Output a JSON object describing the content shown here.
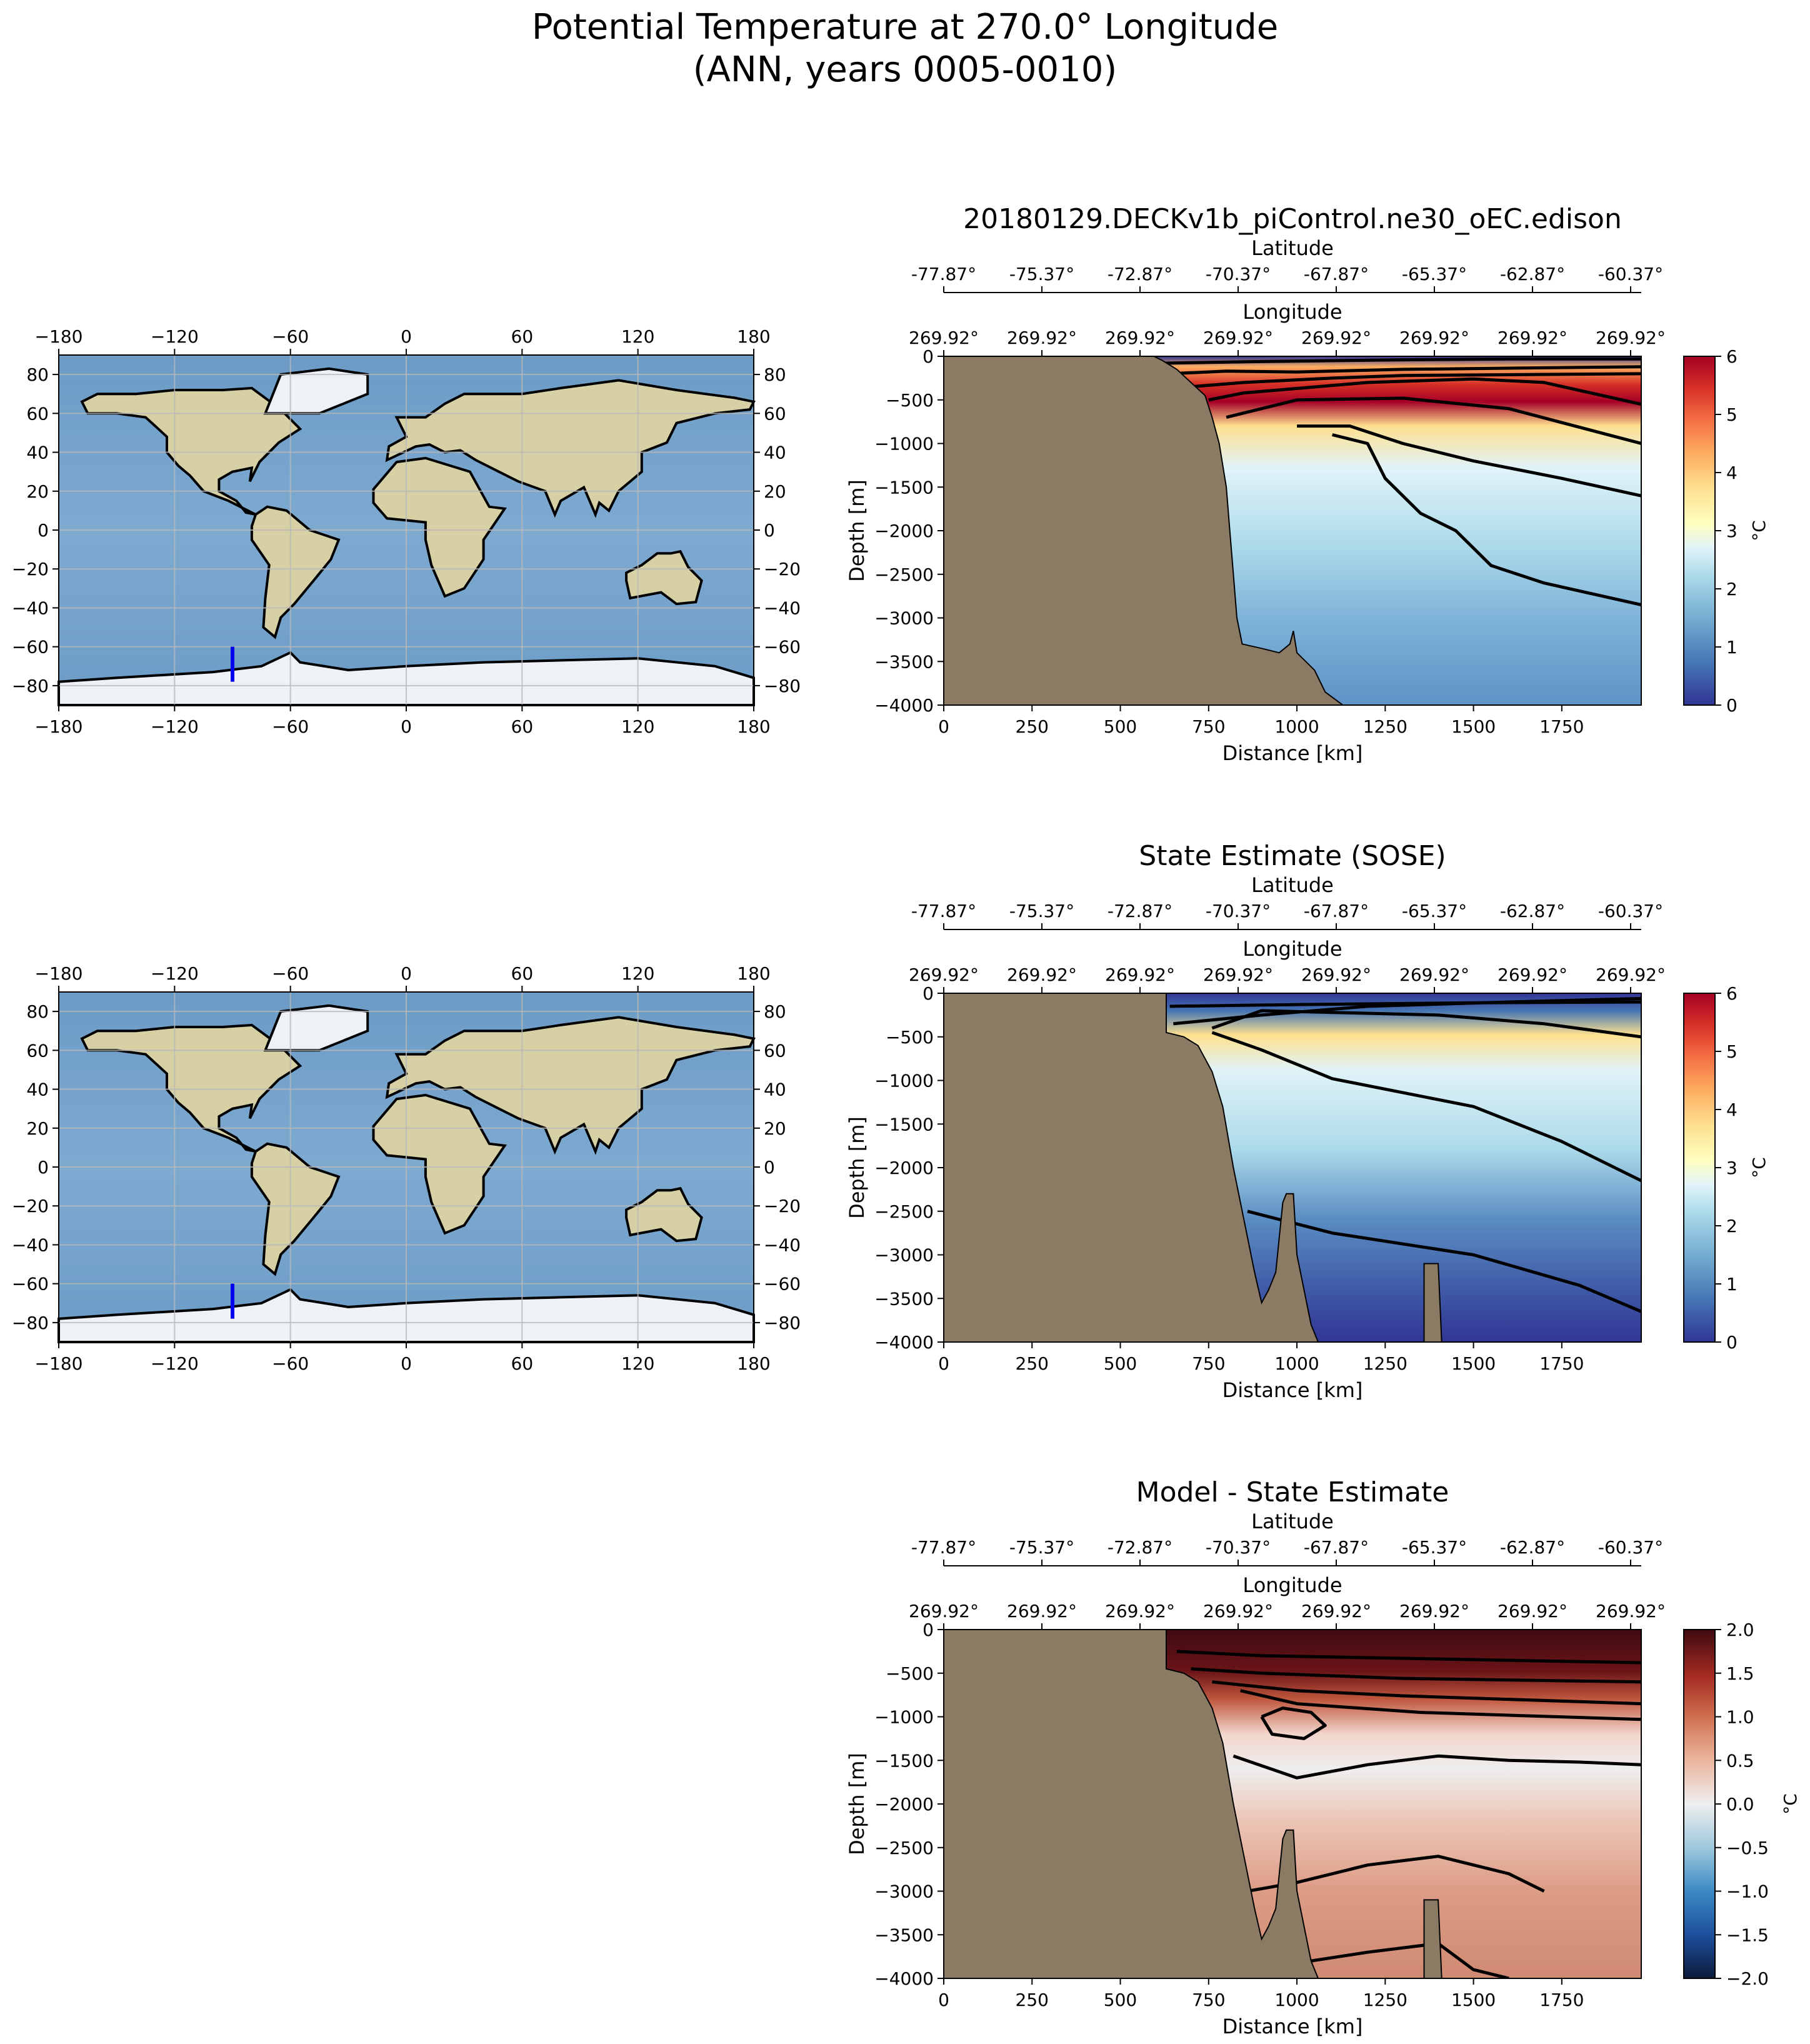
{
  "figure": {
    "title_line1": "Potential Temperature at 270.0° Longitude",
    "title_line2": "(ANN, years 0005-0010)"
  },
  "colors": {
    "land": "#8c7b64",
    "contour": "#000000",
    "transect_line": "#0000ee",
    "ocean_map": "#6e9fc9",
    "ice": "#eef1f6",
    "map_land": "#d6d0a4"
  },
  "maps": [
    {
      "lon_ticks": [
        "−180",
        "−120",
        "−60",
        "0",
        "60",
        "120",
        "180"
      ],
      "lat_ticks": [
        "80",
        "60",
        "40",
        "20",
        "0",
        "−20",
        "−40",
        "−60",
        "−80"
      ],
      "xlim": [
        -180,
        180
      ],
      "ylim": [
        -90,
        90
      ],
      "transect": {
        "lon": -90,
        "lat_min": -78,
        "lat_max": -60
      }
    },
    {
      "lon_ticks": [
        "−180",
        "−120",
        "−60",
        "0",
        "60",
        "120",
        "180"
      ],
      "lat_ticks": [
        "80",
        "60",
        "40",
        "20",
        "0",
        "−20",
        "−40",
        "−60",
        "−80"
      ],
      "xlim": [
        -180,
        180
      ],
      "ylim": [
        -90,
        90
      ],
      "transect": {
        "lon": -90,
        "lat_min": -78,
        "lat_max": -60
      }
    }
  ],
  "chart_data": [
    {
      "type": "heatmap",
      "title": "20180129.DECKv1b_piControl.ne30_oEC.edison",
      "xlabel": "Distance [km]",
      "ylabel": "Depth [m]",
      "top_axis1_label": "Latitude",
      "top_axis2_label": "Longitude",
      "lat_ticks": [
        "-77.87°",
        "-75.37°",
        "-72.87°",
        "-70.37°",
        "-67.87°",
        "-65.37°",
        "-62.87°",
        "-60.37°"
      ],
      "lon_ticks": [
        "269.92°",
        "269.92°",
        "269.92°",
        "269.92°",
        "269.92°",
        "269.92°",
        "269.92°",
        "269.92°"
      ],
      "xlim": [
        0,
        1975
      ],
      "ylim": [
        -4000,
        0
      ],
      "x_ticks": [
        "0",
        "250",
        "500",
        "750",
        "1000",
        "1250",
        "1500",
        "1750"
      ],
      "y_ticks": [
        "0",
        "−500",
        "−1000",
        "−1500",
        "−2000",
        "−2500",
        "−3000",
        "−3500",
        "−4000"
      ],
      "colormap": "RdYlBu_r",
      "colorbar": {
        "label": "°C",
        "min": 0,
        "max": 6,
        "ticks": [
          "0",
          "1",
          "2",
          "3",
          "4",
          "5",
          "6"
        ]
      },
      "bathymetry": [
        [
          0,
          0
        ],
        [
          595,
          0
        ],
        [
          620,
          -50
        ],
        [
          660,
          -150
        ],
        [
          700,
          -300
        ],
        [
          740,
          -450
        ],
        [
          760,
          -700
        ],
        [
          780,
          -1000
        ],
        [
          800,
          -1500
        ],
        [
          810,
          -2000
        ],
        [
          820,
          -2500
        ],
        [
          830,
          -3000
        ],
        [
          845,
          -3300
        ],
        [
          900,
          -3350
        ],
        [
          950,
          -3400
        ],
        [
          980,
          -3300
        ],
        [
          990,
          -3150
        ],
        [
          1000,
          -3400
        ],
        [
          1050,
          -3600
        ],
        [
          1080,
          -3850
        ],
        [
          1130,
          -4000
        ],
        [
          0,
          -4000
        ]
      ],
      "contours": [
        [
          [
            600,
            -80
          ],
          [
            900,
            -60
          ],
          [
            1300,
            -40
          ],
          [
            1600,
            -30
          ],
          [
            1975,
            -30
          ]
        ],
        [
          [
            640,
            -200
          ],
          [
            800,
            -170
          ],
          [
            1000,
            -180
          ],
          [
            1300,
            -150
          ],
          [
            1975,
            -120
          ]
        ],
        [
          [
            700,
            -350
          ],
          [
            850,
            -300
          ],
          [
            1100,
            -250
          ],
          [
            1300,
            -220
          ],
          [
            1975,
            -200
          ]
        ],
        [
          [
            750,
            -500
          ],
          [
            850,
            -420
          ],
          [
            1200,
            -300
          ],
          [
            1500,
            -260
          ],
          [
            1700,
            -300
          ],
          [
            1975,
            -550
          ]
        ],
        [
          [
            800,
            -700
          ],
          [
            1000,
            -500
          ],
          [
            1300,
            -480
          ],
          [
            1600,
            -600
          ],
          [
            1975,
            -1000
          ]
        ],
        [
          [
            1000,
            -800
          ],
          [
            1150,
            -800
          ],
          [
            1300,
            -1000
          ],
          [
            1500,
            -1200
          ],
          [
            1750,
            -1400
          ],
          [
            1975,
            -1600
          ]
        ],
        [
          [
            1100,
            -900
          ],
          [
            1200,
            -1000
          ],
          [
            1250,
            -1400
          ],
          [
            1350,
            -1800
          ],
          [
            1450,
            -2000
          ],
          [
            1550,
            -2400
          ],
          [
            1700,
            -2600
          ],
          [
            1975,
            -2850
          ]
        ]
      ],
      "field_note": "warm surface layer >5 °C near 1500–1975 km, cold <0.5 °C thin surface band 600–1975 km, ~1–2 °C at depth"
    },
    {
      "type": "heatmap",
      "title": "State Estimate (SOSE)",
      "xlabel": "Distance [km]",
      "ylabel": "Depth [m]",
      "top_axis1_label": "Latitude",
      "top_axis2_label": "Longitude",
      "lat_ticks": [
        "-77.87°",
        "-75.37°",
        "-72.87°",
        "-70.37°",
        "-67.87°",
        "-65.37°",
        "-62.87°",
        "-60.37°"
      ],
      "lon_ticks": [
        "269.92°",
        "269.92°",
        "269.92°",
        "269.92°",
        "269.92°",
        "269.92°",
        "269.92°",
        "269.92°"
      ],
      "xlim": [
        0,
        1975
      ],
      "ylim": [
        -4000,
        0
      ],
      "x_ticks": [
        "0",
        "250",
        "500",
        "750",
        "1000",
        "1250",
        "1500",
        "1750"
      ],
      "y_ticks": [
        "0",
        "−500",
        "−1000",
        "−1500",
        "−2000",
        "−2500",
        "−3000",
        "−3500",
        "−4000"
      ],
      "colormap": "RdYlBu_r",
      "colorbar": {
        "label": "°C",
        "min": 0,
        "max": 6,
        "ticks": [
          "0",
          "1",
          "2",
          "3",
          "4",
          "5",
          "6"
        ]
      },
      "bathymetry": [
        [
          0,
          0
        ],
        [
          630,
          0
        ],
        [
          630,
          -450
        ],
        [
          680,
          -500
        ],
        [
          720,
          -600
        ],
        [
          760,
          -900
        ],
        [
          790,
          -1300
        ],
        [
          820,
          -2000
        ],
        [
          840,
          -2400
        ],
        [
          860,
          -2800
        ],
        [
          880,
          -3200
        ],
        [
          900,
          -3550
        ],
        [
          920,
          -3400
        ],
        [
          940,
          -3200
        ],
        [
          960,
          -2400
        ],
        [
          970,
          -2300
        ],
        [
          990,
          -2300
        ],
        [
          1000,
          -3000
        ],
        [
          1020,
          -3400
        ],
        [
          1040,
          -3800
        ],
        [
          1060,
          -4000
        ],
        [
          1360,
          -4000
        ],
        [
          1360,
          -3100
        ],
        [
          1400,
          -3100
        ],
        [
          1410,
          -4000
        ],
        [
          0,
          -4000
        ]
      ],
      "contours": [
        [
          [
            640,
            -150
          ],
          [
            1000,
            -130
          ],
          [
            1500,
            -110
          ],
          [
            1975,
            -100
          ]
        ],
        [
          [
            650,
            -350
          ],
          [
            900,
            -250
          ],
          [
            1200,
            -150
          ],
          [
            1600,
            -100
          ],
          [
            1975,
            -60
          ]
        ],
        [
          [
            760,
            -400
          ],
          [
            900,
            -200
          ],
          [
            1400,
            -250
          ],
          [
            1700,
            -350
          ],
          [
            1975,
            -500
          ]
        ],
        [
          [
            760,
            -450
          ],
          [
            900,
            -650
          ],
          [
            1100,
            -980
          ],
          [
            1500,
            -1300
          ],
          [
            1750,
            -1700
          ],
          [
            1975,
            -2150
          ]
        ],
        [
          [
            860,
            -2500
          ],
          [
            1100,
            -2750
          ],
          [
            1500,
            -3000
          ],
          [
            1800,
            -3350
          ],
          [
            1975,
            -3650
          ]
        ]
      ],
      "field_note": "cold (~0–1 °C) surface band, warm core ~3 °C near 1900 km at -500 m, deep water ~0.5–1 °C"
    },
    {
      "type": "heatmap",
      "title": "Model - State Estimate",
      "xlabel": "Distance [km]",
      "ylabel": "Depth [m]",
      "top_axis1_label": "Latitude",
      "top_axis2_label": "Longitude",
      "lat_ticks": [
        "-77.87°",
        "-75.37°",
        "-72.87°",
        "-70.37°",
        "-67.87°",
        "-65.37°",
        "-62.87°",
        "-60.37°"
      ],
      "lon_ticks": [
        "269.92°",
        "269.92°",
        "269.92°",
        "269.92°",
        "269.92°",
        "269.92°",
        "269.92°",
        "269.92°"
      ],
      "xlim": [
        0,
        1975
      ],
      "ylim": [
        -4000,
        0
      ],
      "x_ticks": [
        "0",
        "250",
        "500",
        "750",
        "1000",
        "1250",
        "1500",
        "1750"
      ],
      "y_ticks": [
        "0",
        "−500",
        "−1000",
        "−1500",
        "−2000",
        "−2500",
        "−3000",
        "−3500",
        "−4000"
      ],
      "colormap": "RdBu_r",
      "colorbar": {
        "label": "°C",
        "min": -2,
        "max": 2,
        "ticks": [
          "−2.0",
          "−1.5",
          "−1.0",
          "−0.5",
          "0.0",
          "0.5",
          "1.0",
          "1.5",
          "2.0"
        ]
      },
      "bathymetry": [
        [
          0,
          0
        ],
        [
          630,
          0
        ],
        [
          630,
          -450
        ],
        [
          680,
          -500
        ],
        [
          720,
          -600
        ],
        [
          760,
          -900
        ],
        [
          790,
          -1300
        ],
        [
          820,
          -2000
        ],
        [
          840,
          -2400
        ],
        [
          860,
          -2800
        ],
        [
          880,
          -3200
        ],
        [
          900,
          -3550
        ],
        [
          920,
          -3400
        ],
        [
          940,
          -3200
        ],
        [
          960,
          -2400
        ],
        [
          970,
          -2300
        ],
        [
          990,
          -2300
        ],
        [
          1000,
          -3000
        ],
        [
          1020,
          -3400
        ],
        [
          1040,
          -3800
        ],
        [
          1060,
          -4000
        ],
        [
          1360,
          -4000
        ],
        [
          1360,
          -3100
        ],
        [
          1400,
          -3100
        ],
        [
          1410,
          -4000
        ],
        [
          0,
          -4000
        ]
      ],
      "contours": [
        [
          [
            660,
            -250
          ],
          [
            900,
            -300
          ],
          [
            1300,
            -330
          ],
          [
            1975,
            -380
          ]
        ],
        [
          [
            700,
            -450
          ],
          [
            900,
            -500
          ],
          [
            1300,
            -560
          ],
          [
            1975,
            -600
          ]
        ],
        [
          [
            760,
            -600
          ],
          [
            1000,
            -700
          ],
          [
            1300,
            -760
          ],
          [
            1975,
            -850
          ]
        ],
        [
          [
            840,
            -700
          ],
          [
            1000,
            -850
          ],
          [
            1350,
            -950
          ],
          [
            1975,
            -1030
          ]
        ],
        [
          [
            900,
            -1000
          ],
          [
            960,
            -900
          ],
          [
            1040,
            -950
          ],
          [
            1080,
            -1100
          ],
          [
            1020,
            -1250
          ],
          [
            930,
            -1200
          ],
          [
            900,
            -1000
          ]
        ],
        [
          [
            820,
            -1450
          ],
          [
            1000,
            -1700
          ],
          [
            1200,
            -1550
          ],
          [
            1400,
            -1450
          ],
          [
            1600,
            -1500
          ],
          [
            1800,
            -1520
          ],
          [
            1975,
            -1550
          ]
        ],
        [
          [
            860,
            -3000
          ],
          [
            1000,
            -2900
          ],
          [
            1200,
            -2700
          ],
          [
            1400,
            -2600
          ],
          [
            1600,
            -2800
          ],
          [
            1700,
            -3000
          ]
        ],
        [
          [
            1040,
            -3800
          ],
          [
            1200,
            -3700
          ],
          [
            1400,
            -3600
          ],
          [
            1500,
            -3900
          ],
          [
            1600,
            -4000
          ]
        ]
      ],
      "field_note": "strong positive anomaly (~2 °C) in upper 500 m, near 0 around -1000 to -1500 m, ~0.5–1 °C positive at depth"
    }
  ]
}
